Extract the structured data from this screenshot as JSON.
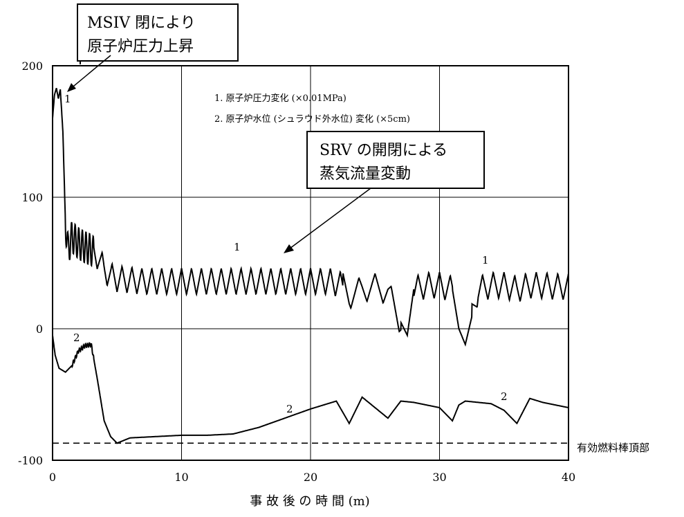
{
  "chart_data": {
    "type": "line",
    "xlabel": "事 故 後 の 時 間 (m)",
    "ylabel": "",
    "xlim": [
      0,
      40
    ],
    "ylim": [
      -100,
      200
    ],
    "x_ticks": [
      0,
      10,
      20,
      30,
      40
    ],
    "y_ticks": [
      -100,
      0,
      100,
      200
    ],
    "grid": true,
    "legend_lines": [
      "1. 原子炉圧力変化 (×0.01MPa)",
      "2. 原子炉水位 (シュラウド外水位) 変化 (×5cm)"
    ],
    "series": [
      {
        "name": "1",
        "x": [
          0,
          0.15,
          0.3,
          0.45,
          0.6,
          0.8,
          1.0,
          1.2,
          1.5,
          2.0,
          2.5,
          3.0,
          3.5,
          4.0,
          4.5,
          5.0,
          6.0,
          7.0,
          8.0,
          9.0,
          10.0,
          12.0,
          14.0,
          16.0,
          18.0,
          20.0,
          21.5,
          22.5,
          23.0,
          24.0,
          25.0,
          26.0,
          27.0,
          27.5,
          28.0,
          29.0,
          30.0,
          31.0,
          31.5,
          32.0,
          33.0,
          34.0,
          35.0,
          36.0,
          37.0,
          38.0,
          39.0,
          40.0
        ],
        "y": [
          160,
          178,
          183,
          175,
          182,
          150,
          80,
          60,
          70,
          65,
          62,
          60,
          55,
          45,
          40,
          38,
          37,
          36,
          36,
          36,
          36,
          36,
          36,
          36,
          36,
          36,
          36,
          33,
          25,
          30,
          32,
          28,
          5,
          -5,
          30,
          33,
          33,
          30,
          0,
          -12,
          30,
          33,
          33,
          30,
          33,
          33,
          32,
          32
        ]
      },
      {
        "name": "2",
        "x": [
          0,
          0.2,
          0.5,
          1.0,
          1.5,
          2.0,
          2.5,
          3.0,
          3.5,
          4.0,
          4.5,
          5.0,
          6.0,
          8.0,
          10.0,
          12.0,
          14.0,
          16.0,
          18.0,
          20.0,
          21.0,
          22.0,
          23.0,
          24.0,
          25.0,
          26.0,
          27.0,
          28.0,
          30.0,
          31.0,
          31.5,
          32.0,
          34.0,
          35.0,
          36.0,
          37.0,
          38.0,
          39.0,
          40.0
        ],
        "y": [
          -5,
          -20,
          -30,
          -33,
          -28,
          -17,
          -13,
          -12,
          -40,
          -70,
          -82,
          -87,
          -83,
          -82,
          -81,
          -81,
          -80,
          -75,
          -68,
          -61,
          -58,
          -55,
          -72,
          -52,
          -60,
          -68,
          -55,
          -56,
          -60,
          -70,
          -58,
          -55,
          -57,
          -62,
          -72,
          -53,
          -56,
          -58,
          -60
        ]
      }
    ],
    "reference_line": {
      "y": -87,
      "label": "有効燃料棒頂部",
      "style": "dashed"
    },
    "annotations": [
      {
        "lines": [
          "MSIV 閉により",
          "原子炉圧力上昇"
        ]
      },
      {
        "lines": [
          "SRV の開閉による",
          "蒸気流量変動"
        ]
      }
    ],
    "series_labels": [
      "1",
      "1",
      "1",
      "2",
      "2",
      "2"
    ]
  }
}
